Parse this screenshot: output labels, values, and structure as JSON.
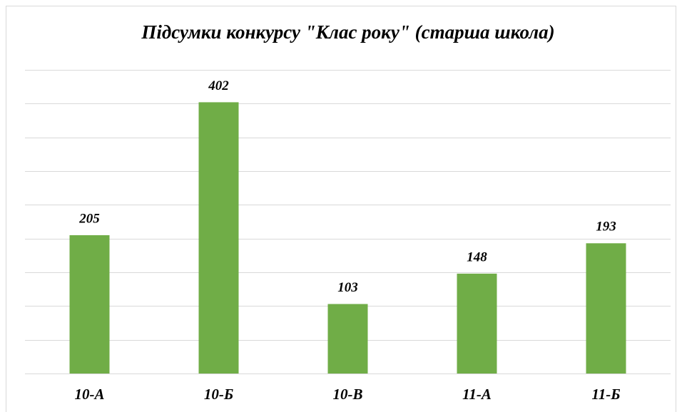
{
  "chart_data": {
    "type": "bar",
    "title": "Підсумки конкурсу \"Клас року\" (старша школа)",
    "categories": [
      "10-А",
      "10-Б",
      "10-В",
      "11-А",
      "11-Б"
    ],
    "values": [
      205,
      402,
      103,
      148,
      193
    ],
    "color": "#70ad47",
    "ylim": [
      0,
      450
    ],
    "yticks": [
      0,
      50,
      100,
      150,
      200,
      250,
      300,
      350,
      400,
      450
    ],
    "grid": true
  }
}
